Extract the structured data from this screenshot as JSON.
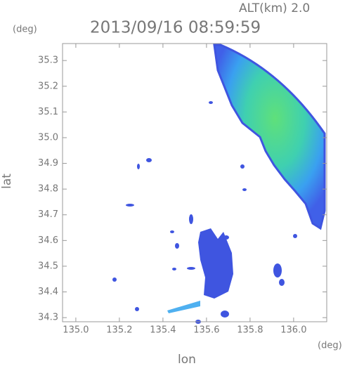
{
  "chart_data": {
    "type": "radar-map",
    "title": "2013/09/16 08:59:59",
    "subtitle": "ALT(km) 2.0",
    "x_unit": "(deg)",
    "y_unit": "(deg)",
    "x_label": "lon",
    "y_label": "lat",
    "xlim": [
      134.939,
      136.152
    ],
    "ylim": [
      34.284,
      35.366
    ],
    "xticks": [
      {
        "value": 135,
        "label": "135.0"
      },
      135.2,
      135.4,
      135.6,
      135.8,
      {
        "value": 136,
        "label": "136.0"
      }
    ],
    "yticks": [
      {
        "value": 34.3,
        "label": "34.3"
      },
      {
        "value": 34.4,
        "label": "34.4"
      },
      {
        "value": 34.5,
        "label": "34.5"
      },
      {
        "value": 34.6,
        "label": "34.6"
      },
      {
        "value": 34.7,
        "label": "34.7"
      },
      {
        "value": 34.8,
        "label": "34.8"
      },
      {
        "value": 34.9,
        "label": "34.9"
      },
      {
        "value": 35,
        "label": "35.0"
      },
      35.1,
      35.2,
      35.3
    ]
  }
}
